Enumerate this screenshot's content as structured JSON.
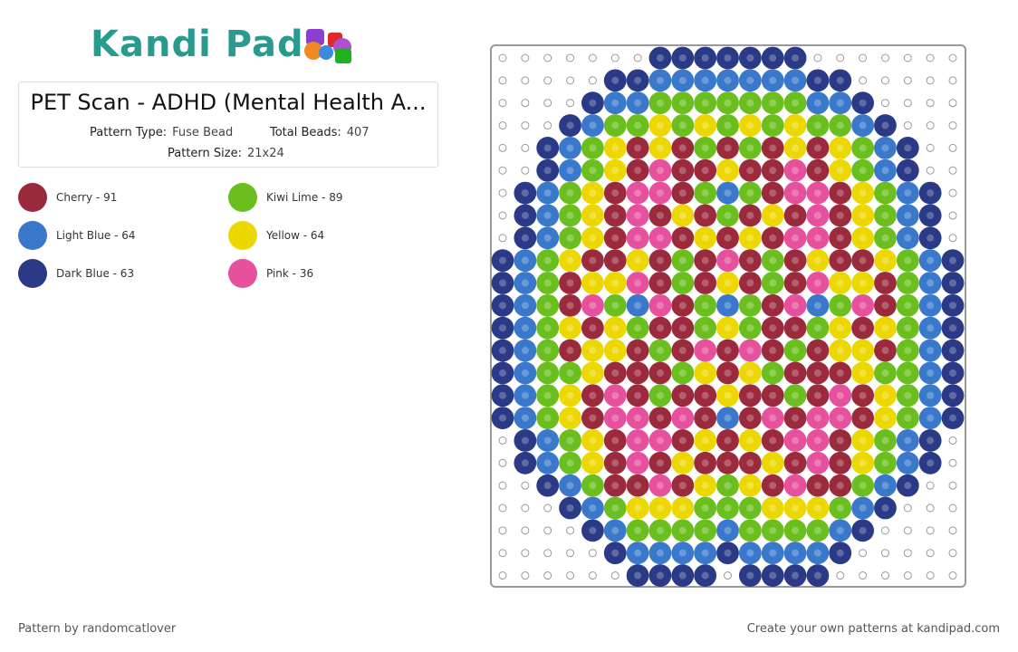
{
  "header": {
    "logo": "Kandi Pad"
  },
  "card": {
    "title": "PET Scan - ADHD (Mental Health A...",
    "fields": [
      {
        "label": "Pattern Type:",
        "value": "Fuse Bead"
      },
      {
        "label": "Total Beads:",
        "value": "407"
      },
      {
        "label": "Pattern Size:",
        "value": "21x24"
      }
    ]
  },
  "colors": [
    {
      "text": "Cherry - 91",
      "color": "#9a2a3c"
    },
    {
      "text": "Kiwi Lime - 89",
      "color": "#6abf1e"
    },
    {
      "text": "Light Blue - 64",
      "color": "#3a78cc"
    },
    {
      "text": "Yellow - 64",
      "color": "#ecd800"
    },
    {
      "text": "Dark Blue - 63",
      "color": "#2b3a86"
    },
    {
      "text": "Pink - 36",
      "color": "#e6509c"
    }
  ],
  "footer": {
    "left": "Pattern by randomcatlover",
    "right": "Create your own patterns at kandipad.com"
  }
}
